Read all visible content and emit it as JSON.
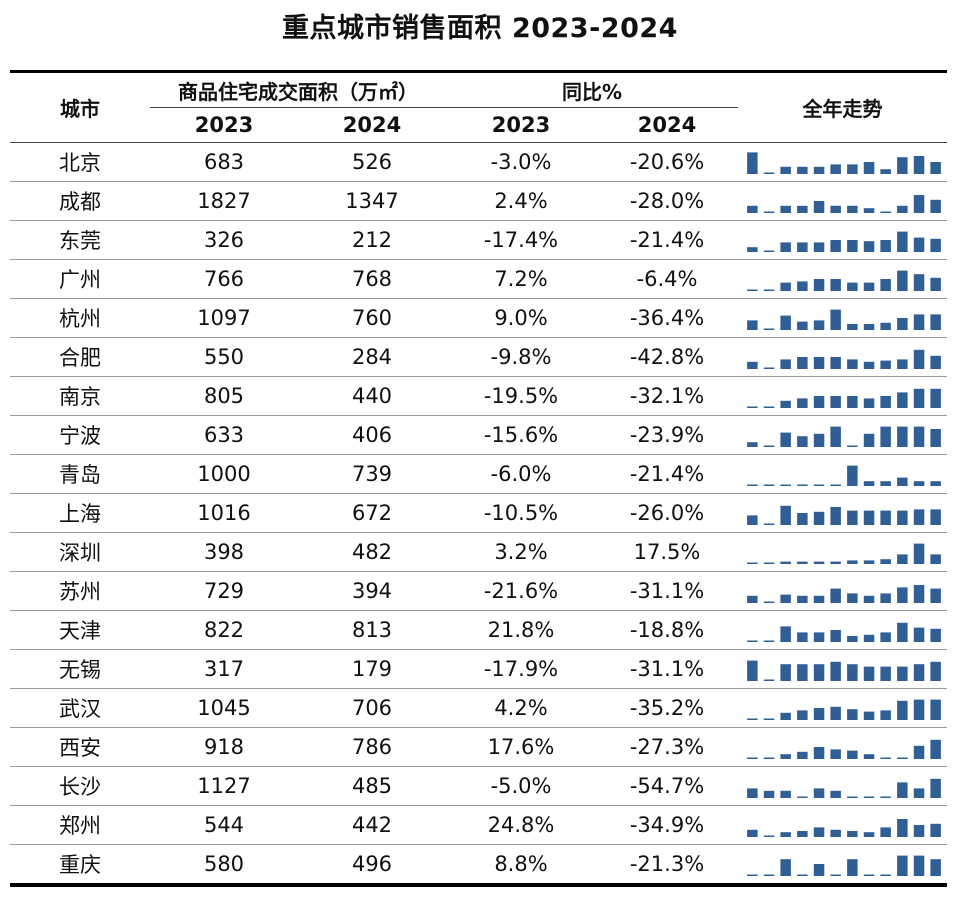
{
  "title": "重点城市销售面积 2023-2024",
  "header": {
    "city": "城市",
    "area_group": "商品住宅成交面积（万㎡）",
    "yoy_group": "同比%",
    "trend": "全年走势",
    "years": [
      "2023",
      "2024",
      "2023",
      "2024"
    ]
  },
  "rows": [
    {
      "city": "北京",
      "area_2023": "683",
      "area_2024": "526",
      "yoy_2023": "-3.0%",
      "yoy_2024": "-20.6%",
      "trend": [
        0.9,
        0.05,
        0.3,
        0.3,
        0.3,
        0.4,
        0.4,
        0.5,
        0.2,
        0.7,
        0.75,
        0.5
      ]
    },
    {
      "city": "成都",
      "area_2023": "1827",
      "area_2024": "1347",
      "yoy_2023": "2.4%",
      "yoy_2024": "-28.0%",
      "trend": [
        0.3,
        0.05,
        0.3,
        0.3,
        0.5,
        0.3,
        0.3,
        0.2,
        0.05,
        0.3,
        0.75,
        0.55
      ]
    },
    {
      "city": "东莞",
      "area_2023": "326",
      "area_2024": "212",
      "yoy_2023": "-17.4%",
      "yoy_2024": "-21.4%",
      "trend": [
        0.2,
        0.05,
        0.4,
        0.4,
        0.4,
        0.5,
        0.5,
        0.45,
        0.5,
        0.85,
        0.6,
        0.55
      ]
    },
    {
      "city": "广州",
      "area_2023": "766",
      "area_2024": "768",
      "yoy_2023": "7.2%",
      "yoy_2024": "-6.4%",
      "trend": [
        0.05,
        0.05,
        0.35,
        0.4,
        0.5,
        0.5,
        0.35,
        0.35,
        0.5,
        0.85,
        0.7,
        0.55
      ]
    },
    {
      "city": "杭州",
      "area_2023": "1097",
      "area_2024": "760",
      "yoy_2023": "9.0%",
      "yoy_2024": "-36.4%",
      "trend": [
        0.4,
        0.05,
        0.6,
        0.35,
        0.4,
        0.85,
        0.25,
        0.25,
        0.3,
        0.5,
        0.65,
        0.65
      ]
    },
    {
      "city": "合肥",
      "area_2023": "550",
      "area_2024": "284",
      "yoy_2023": "-9.8%",
      "yoy_2024": "-42.8%",
      "trend": [
        0.3,
        0.05,
        0.4,
        0.5,
        0.5,
        0.5,
        0.4,
        0.3,
        0.35,
        0.4,
        0.8,
        0.55
      ]
    },
    {
      "city": "南京",
      "area_2023": "805",
      "area_2024": "440",
      "yoy_2023": "-19.5%",
      "yoy_2024": "-32.1%",
      "trend": [
        0.05,
        0.05,
        0.3,
        0.4,
        0.5,
        0.5,
        0.5,
        0.4,
        0.5,
        0.65,
        0.8,
        0.8
      ]
    },
    {
      "city": "宁波",
      "area_2023": "633",
      "area_2024": "406",
      "yoy_2023": "-15.6%",
      "yoy_2024": "-23.9%",
      "trend": [
        0.2,
        0.05,
        0.6,
        0.45,
        0.55,
        0.85,
        0.05,
        0.55,
        0.85,
        0.85,
        0.85,
        0.75
      ]
    },
    {
      "city": "青岛",
      "area_2023": "1000",
      "area_2024": "739",
      "yoy_2023": "-6.0%",
      "yoy_2024": "-21.4%",
      "trend": [
        0.05,
        0.05,
        0.05,
        0.05,
        0.05,
        0.05,
        0.85,
        0.2,
        0.2,
        0.35,
        0.2,
        0.2
      ]
    },
    {
      "city": "上海",
      "area_2023": "1016",
      "area_2024": "672",
      "yoy_2023": "-10.5%",
      "yoy_2024": "-26.0%",
      "trend": [
        0.4,
        0.05,
        0.8,
        0.5,
        0.55,
        0.75,
        0.6,
        0.6,
        0.6,
        0.6,
        0.65,
        0.65
      ]
    },
    {
      "city": "深圳",
      "area_2023": "398",
      "area_2024": "482",
      "yoy_2023": "3.2%",
      "yoy_2024": "17.5%",
      "trend": [
        0.05,
        0.05,
        0.1,
        0.1,
        0.1,
        0.1,
        0.15,
        0.15,
        0.2,
        0.4,
        0.85,
        0.4
      ]
    },
    {
      "city": "苏州",
      "area_2023": "729",
      "area_2024": "394",
      "yoy_2023": "-21.6%",
      "yoy_2024": "-31.1%",
      "trend": [
        0.3,
        0.05,
        0.35,
        0.3,
        0.3,
        0.6,
        0.4,
        0.3,
        0.4,
        0.65,
        0.75,
        0.6
      ]
    },
    {
      "city": "天津",
      "area_2023": "822",
      "area_2024": "813",
      "yoy_2023": "21.8%",
      "yoy_2024": "-18.8%",
      "trend": [
        0.05,
        0.05,
        0.65,
        0.4,
        0.4,
        0.5,
        0.25,
        0.3,
        0.4,
        0.8,
        0.6,
        0.55
      ]
    },
    {
      "city": "无锡",
      "area_2023": "317",
      "area_2024": "179",
      "yoy_2023": "-17.9%",
      "yoy_2024": "-31.1%",
      "trend": [
        0.85,
        0.05,
        0.7,
        0.7,
        0.7,
        0.8,
        0.7,
        0.6,
        0.6,
        0.6,
        0.7,
        0.8
      ]
    },
    {
      "city": "武汉",
      "area_2023": "1045",
      "area_2024": "706",
      "yoy_2023": "4.2%",
      "yoy_2024": "-35.2%",
      "trend": [
        0.05,
        0.05,
        0.3,
        0.4,
        0.5,
        0.55,
        0.45,
        0.35,
        0.4,
        0.8,
        0.85,
        0.85
      ]
    },
    {
      "city": "西安",
      "area_2023": "918",
      "area_2024": "786",
      "yoy_2023": "17.6%",
      "yoy_2024": "-27.3%",
      "trend": [
        0.05,
        0.05,
        0.2,
        0.3,
        0.5,
        0.4,
        0.35,
        0.2,
        0.05,
        0.05,
        0.55,
        0.8
      ]
    },
    {
      "city": "长沙",
      "area_2023": "1127",
      "area_2024": "485",
      "yoy_2023": "-5.0%",
      "yoy_2024": "-54.7%",
      "trend": [
        0.4,
        0.3,
        0.3,
        0.05,
        0.4,
        0.3,
        0.05,
        0.05,
        0.05,
        0.65,
        0.4,
        0.8
      ]
    },
    {
      "city": "郑州",
      "area_2023": "544",
      "area_2024": "442",
      "yoy_2023": "24.8%",
      "yoy_2024": "-34.9%",
      "trend": [
        0.3,
        0.05,
        0.2,
        0.25,
        0.4,
        0.3,
        0.25,
        0.2,
        0.4,
        0.75,
        0.5,
        0.55
      ]
    },
    {
      "city": "重庆",
      "area_2023": "580",
      "area_2024": "496",
      "yoy_2023": "8.8%",
      "yoy_2024": "-21.3%",
      "trend": [
        0.05,
        0.05,
        0.7,
        0.05,
        0.5,
        0.05,
        0.7,
        0.05,
        0.05,
        0.85,
        0.85,
        0.7
      ]
    }
  ]
}
